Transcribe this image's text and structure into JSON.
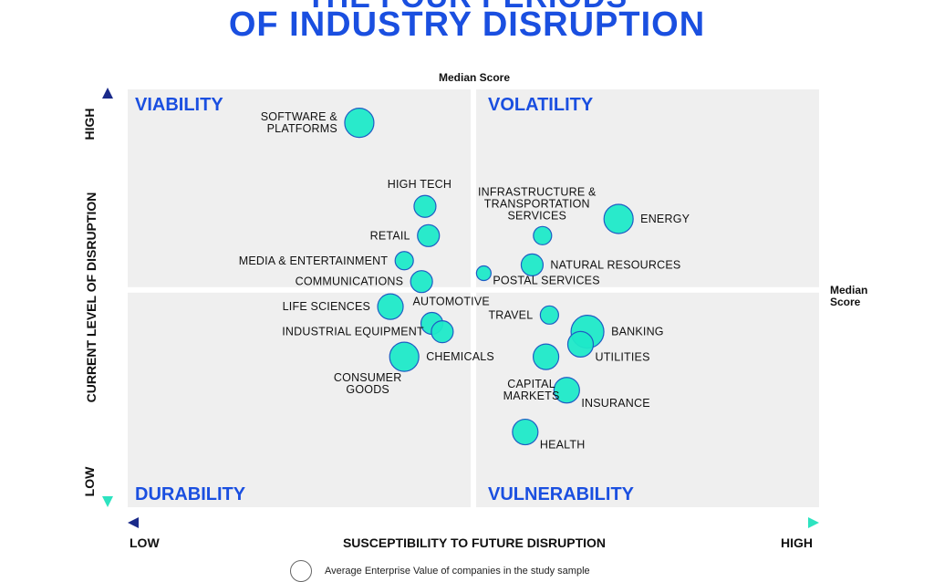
{
  "header": {
    "title_line1": "THE FOUR PERIODS",
    "title_line2": "OF INDUSTRY DISRUPTION"
  },
  "colors": {
    "accent": "#1a4fe0",
    "bubble_fill": "#1de9c8",
    "bubble_stroke": "#1f5cc4",
    "panel": "#efefef",
    "axis_gradient_start": "#1a2a8a",
    "axis_gradient_end": "#2de3c0"
  },
  "annotations": {
    "median_top": "Median Score",
    "median_right_line1": "Median",
    "median_right_line2": "Score"
  },
  "axes": {
    "y_label": "CURRENT LEVEL OF DISRUPTION",
    "y_high": "HIGH",
    "y_low": "LOW",
    "x_label": "SUSCEPTIBILITY TO FUTURE DISRUPTION",
    "x_low": "LOW",
    "x_high": "HIGH"
  },
  "legend": {
    "text": "Average Enterprise Value of companies in the study sample"
  },
  "chart_data": {
    "type": "scatter",
    "title": "THE FOUR PERIODS OF INDUSTRY DISRUPTION",
    "xlabel": "SUSCEPTIBILITY TO FUTURE DISRUPTION",
    "ylabel": "CURRENT LEVEL OF DISRUPTION",
    "xlim": [
      0,
      100
    ],
    "ylim": [
      0,
      100
    ],
    "median_x": 50,
    "median_y": 52,
    "grid": false,
    "quadrants": [
      {
        "name": "VIABILITY",
        "position": "top-left"
      },
      {
        "name": "VOLATILITY",
        "position": "top-right"
      },
      {
        "name": "DURABILITY",
        "position": "bottom-left"
      },
      {
        "name": "VULNERABILITY",
        "position": "bottom-right"
      }
    ],
    "points": [
      {
        "lines": [
          "SOFTWARE &",
          "PLATFORMS"
        ],
        "x": 33.5,
        "y": 92,
        "size": 3,
        "anchor": "left"
      },
      {
        "lines": [
          "HIGH TECH"
        ],
        "x": 43,
        "y": 72,
        "size": 2,
        "anchor": "above"
      },
      {
        "lines": [
          "RETAIL"
        ],
        "x": 43.5,
        "y": 65,
        "size": 2,
        "anchor": "left"
      },
      {
        "lines": [
          "MEDIA & ENTERTAINMENT"
        ],
        "x": 40,
        "y": 59,
        "size": 1.5,
        "anchor": "left"
      },
      {
        "lines": [
          "COMMUNICATIONS"
        ],
        "x": 42.5,
        "y": 54,
        "size": 2,
        "anchor": "left"
      },
      {
        "lines": [
          "LIFE SCIENCES"
        ],
        "x": 38,
        "y": 48,
        "size": 2.5,
        "anchor": "left"
      },
      {
        "lines": [
          "AUTOMOTIVE"
        ],
        "x": 44,
        "y": 44,
        "size": 2,
        "anchor": "right-up"
      },
      {
        "lines": [
          "INDUSTRIAL EQUIPMENT"
        ],
        "x": 45.5,
        "y": 42,
        "size": 2,
        "anchor": "left"
      },
      {
        "lines": [
          "CHEMICALS"
        ],
        "x": 40,
        "y": 36,
        "size": 3,
        "anchor": "right"
      },
      {
        "lines": [
          "CONSUMER",
          "GOODS"
        ],
        "x": 40,
        "y": 36,
        "size": 0,
        "anchor": "below-left"
      },
      {
        "lines": [
          "ENERGY"
        ],
        "x": 71,
        "y": 69,
        "size": 3,
        "anchor": "right"
      },
      {
        "lines": [
          "INFRASTRUCTURE &",
          "TRANSPORTATION",
          "SERVICES"
        ],
        "x": 60,
        "y": 65,
        "size": 1.5,
        "anchor": "above"
      },
      {
        "lines": [
          "NATURAL RESOURCES"
        ],
        "x": 58.5,
        "y": 58,
        "size": 2,
        "anchor": "right"
      },
      {
        "lines": [
          "POSTAL SERVICES"
        ],
        "x": 51.5,
        "y": 56,
        "size": 1,
        "anchor": "below-right"
      },
      {
        "lines": [
          "TRAVEL"
        ],
        "x": 61,
        "y": 46,
        "size": 1.5,
        "anchor": "left"
      },
      {
        "lines": [
          "BANKING"
        ],
        "x": 66.5,
        "y": 42,
        "size": 3.5,
        "anchor": "right"
      },
      {
        "lines": [
          "UTILITIES"
        ],
        "x": 65.5,
        "y": 39,
        "size": 2.5,
        "anchor": "below-right"
      },
      {
        "lines": [
          "CAPITAL",
          "MARKETS"
        ],
        "x": 60.5,
        "y": 36,
        "size": 2.5,
        "anchor": "below-left"
      },
      {
        "lines": [
          "INSURANCE"
        ],
        "x": 63.5,
        "y": 28,
        "size": 2.5,
        "anchor": "below-right"
      },
      {
        "lines": [
          "HEALTH"
        ],
        "x": 57.5,
        "y": 18,
        "size": 2.5,
        "anchor": "below-right"
      }
    ]
  }
}
